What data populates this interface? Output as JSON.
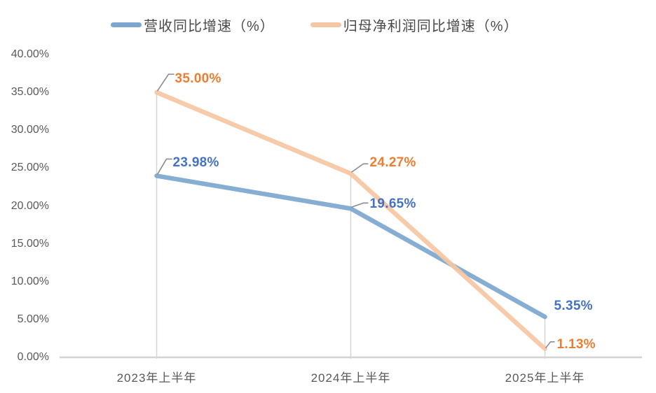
{
  "legend": {
    "items": [
      {
        "label": "营收同比增速（%）"
      },
      {
        "label": "归母净利润同比增速（%）"
      }
    ]
  },
  "chart_data": {
    "type": "line",
    "categories": [
      "2023年上半年",
      "2024年上半年",
      "2025年上半年"
    ],
    "series": [
      {
        "name": "营收同比增速（%）",
        "values": [
          23.98,
          19.65,
          5.35
        ],
        "point_labels": [
          "23.98%",
          "19.65%",
          "5.35%"
        ],
        "line_color": "#7CA6CE",
        "label_color": "#4472C4"
      },
      {
        "name": "归母净利润同比增速（%）",
        "values": [
          35.0,
          24.27,
          1.13
        ],
        "point_labels": [
          "35.00%",
          "24.27%",
          "1.13%"
        ],
        "line_color": "#F6C7A3",
        "label_color": "#ED7D31"
      }
    ],
    "ylim": [
      0,
      40
    ],
    "ytick_labels": [
      "0.00%",
      "5.00%",
      "10.00%",
      "15.00%",
      "20.00%",
      "25.00%",
      "30.00%",
      "35.00%",
      "40.00%"
    ],
    "xlabel": "",
    "ylabel": "",
    "grid": false,
    "legend_position": "top",
    "drop_lines": true,
    "colors": {
      "axis_line": "#D3D3D3",
      "drop_line": "#D6D6D6",
      "leader_line": "#8C8C8C",
      "tick_text": "#595959",
      "legend_text": "#4A4A4A"
    }
  }
}
